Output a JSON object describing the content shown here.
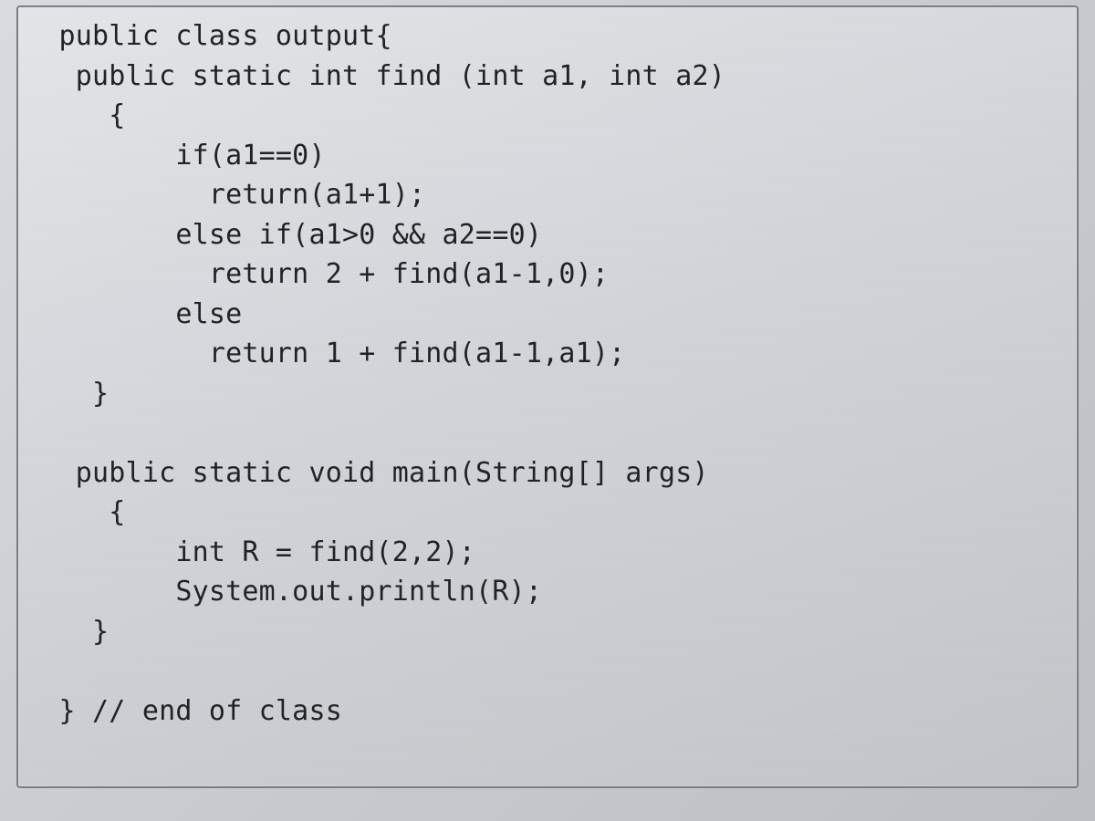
{
  "code": {
    "language": "java",
    "font_family": "monospace",
    "font_size_pt": 22,
    "text_color": "#1f2123",
    "background_gradient": [
      "#e4e7ea",
      "#d2d5d9",
      "#c2c5c9"
    ],
    "border_color": "#7a7e82",
    "indent_unit": "    ",
    "lines": [
      "  public class output{",
      "   public static int find (int a1, int a2)",
      "     {",
      "         if(a1==0)",
      "           return(a1+1);",
      "         else if(a1>0 && a2==0)",
      "           return 2 + find(a1-1,0);",
      "         else",
      "           return 1 + find(a1-1,a1);",
      "    }",
      "",
      "   public static void main(String[] args)",
      "     {",
      "         int R = find(2,2);",
      "         System.out.println(R);",
      "    }",
      "",
      "  } // end of class"
    ]
  }
}
